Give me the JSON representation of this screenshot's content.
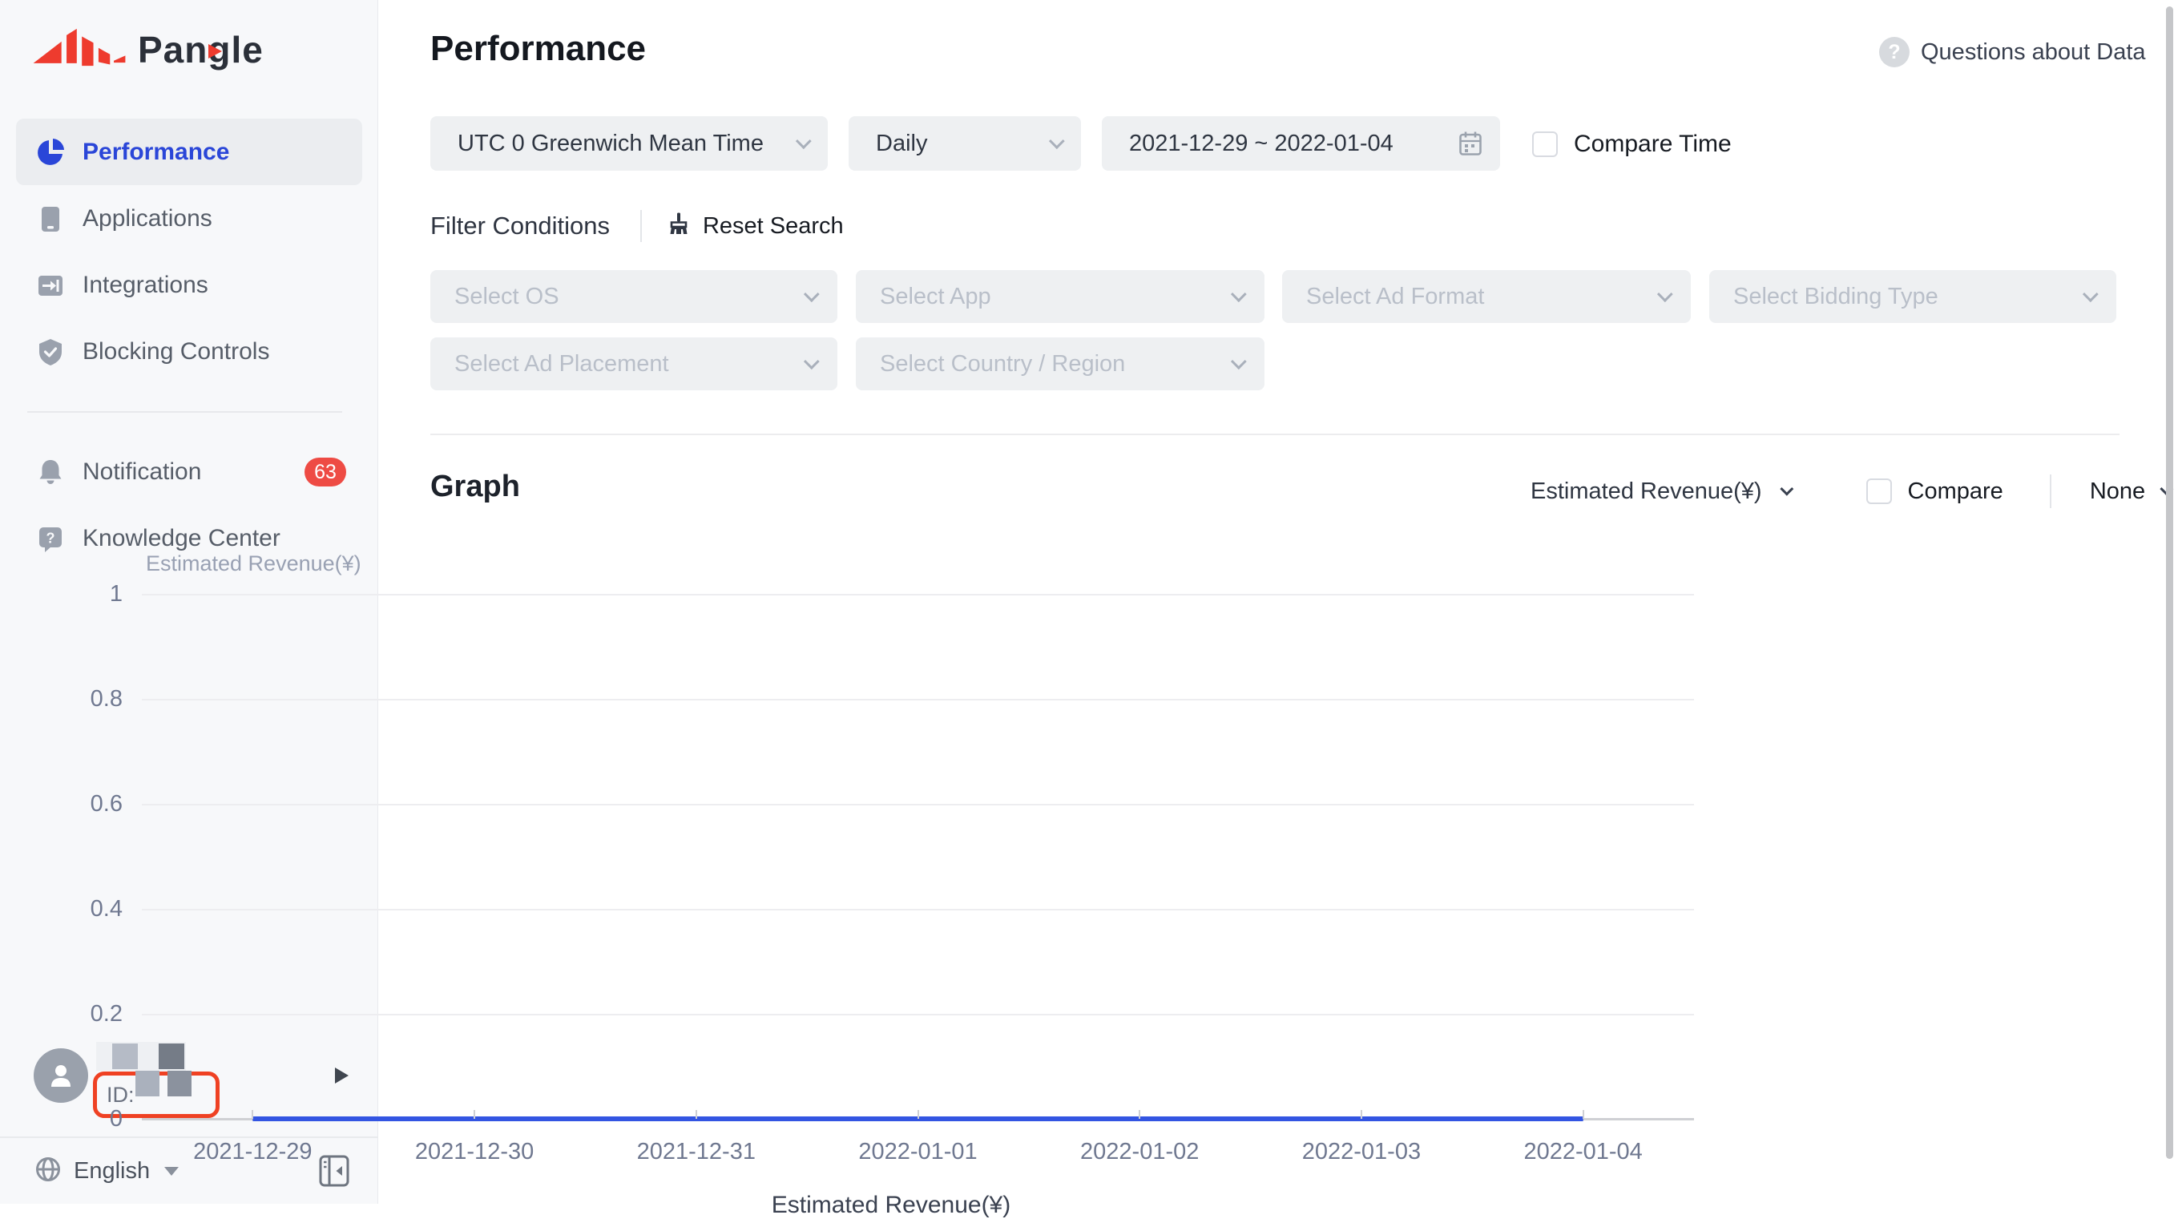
{
  "brand": {
    "name": "Pangle"
  },
  "sidebar": {
    "items": [
      {
        "label": "Performance",
        "active": true
      },
      {
        "label": "Applications"
      },
      {
        "label": "Integrations"
      },
      {
        "label": "Blocking Controls"
      },
      {
        "label": "Notification",
        "badge": "63"
      },
      {
        "label": "Knowledge Center"
      }
    ],
    "user": {
      "id_label": "ID:"
    },
    "language": "English"
  },
  "header": {
    "title": "Performance",
    "help_link": "Questions about Data"
  },
  "filters": {
    "timezone": "UTC 0 Greenwich Mean Time",
    "granularity": "Daily",
    "date_range": "2021-12-29 ~ 2022-01-04",
    "compare_time_label": "Compare Time",
    "section_label": "Filter Conditions",
    "reset_label": "Reset Search",
    "selects": [
      "Select OS",
      "Select App",
      "Select Ad Format",
      "Select Bidding Type",
      "Select Ad Placement",
      "Select Country / Region"
    ]
  },
  "graph": {
    "title": "Graph",
    "metric": "Estimated Revenue(¥)",
    "compare_label": "Compare",
    "secondary_dimension": "None"
  },
  "chart_data": {
    "type": "line",
    "title": "",
    "xlabel": "",
    "ylabel": "Estimated Revenue(¥)",
    "x": [
      "2021-12-29",
      "2021-12-30",
      "2021-12-31",
      "2022-01-01",
      "2022-01-02",
      "2022-01-03",
      "2022-01-04"
    ],
    "series": [
      {
        "name": "Estimated Revenue(¥)",
        "values": [
          0,
          0,
          0,
          0,
          0,
          0,
          0
        ],
        "color": "#3355e2"
      }
    ],
    "ylim": [
      0,
      1
    ],
    "yticks": [
      0,
      0.2,
      0.4,
      0.6,
      0.8,
      1
    ],
    "grid": true,
    "legend_position": "bottom"
  },
  "colors": {
    "accent_blue": "#2a46d8",
    "brand_red": "#ee3b2e",
    "badge_red": "#ee4b44",
    "annotation_red": "#ef4123",
    "line_blue": "#3355e2"
  }
}
